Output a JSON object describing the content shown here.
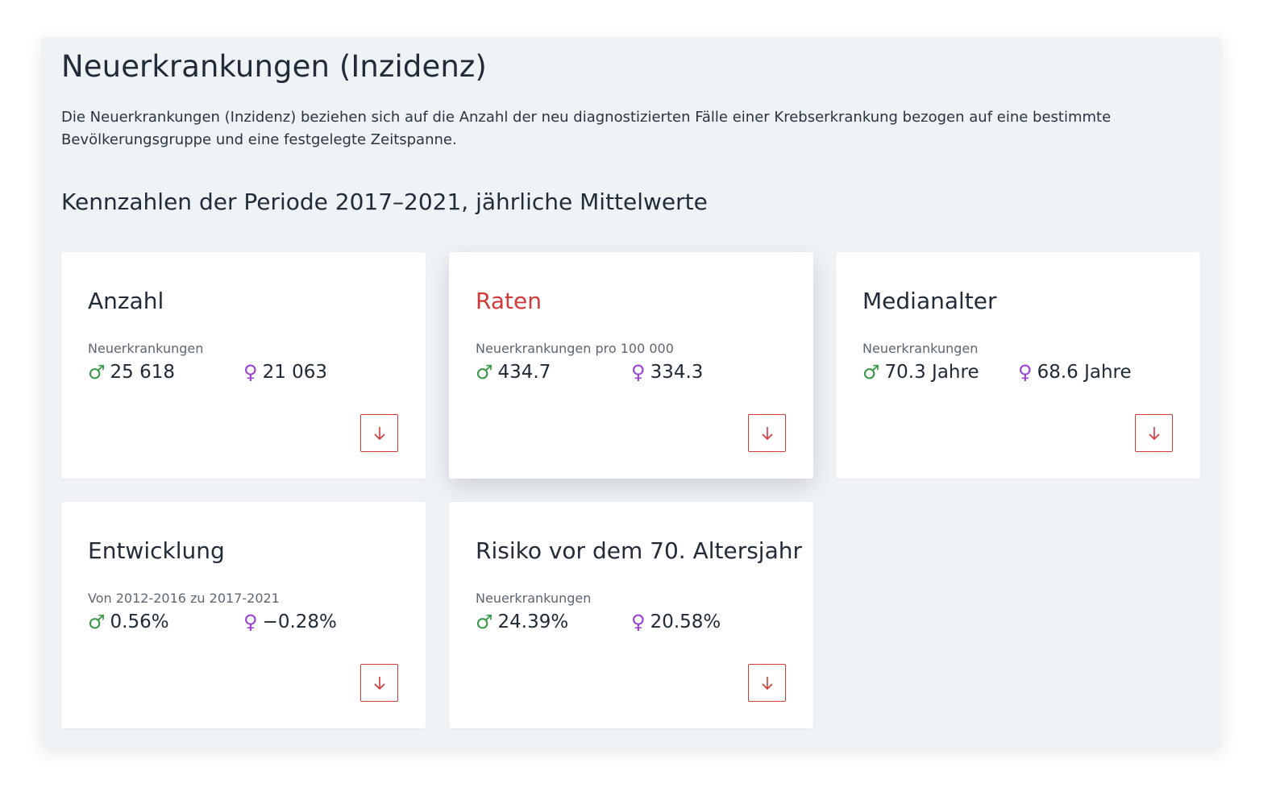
{
  "section": {
    "title": "Neuerkrankungen (Inzidenz)",
    "description": "Die Neuerkrankungen (Inzidenz) beziehen sich auf die Anzahl der neu diagnostizierten Fälle einer Krebserkrankung bezogen auf eine bestimmte Bevölkerungsgruppe und eine festgelegte Zeitspanne.",
    "period_title": "Kennzahlen der Periode 2017–2021, jährliche Mittelwerte"
  },
  "symbols": {
    "male": "♂",
    "female": "♀"
  },
  "colors": {
    "accent": "#d23a3a",
    "male": "#3a9a4a",
    "female": "#9b3fd6",
    "panel_bg": "#f0f3f6"
  },
  "cards": [
    {
      "title": "Anzahl",
      "subtitle": "Neuerkrankungen",
      "male": "25 618",
      "female": "21 063",
      "download_icon": "arrow-down-icon",
      "active": false
    },
    {
      "title": "Raten",
      "subtitle": "Neuerkrankungen pro 100 000",
      "male": "434.7",
      "female": "334.3",
      "download_icon": "arrow-down-icon",
      "active": true
    },
    {
      "title": "Medianalter",
      "subtitle": "Neuerkrankungen",
      "male": "70.3 Jahre",
      "female": "68.6 Jahre",
      "download_icon": "arrow-down-icon",
      "active": false
    },
    {
      "title": "Entwicklung",
      "subtitle": "Von 2012-2016 zu 2017-2021",
      "male": "0.56%",
      "female": "−0.28%",
      "download_icon": "arrow-down-icon",
      "active": false
    },
    {
      "title": "Risiko vor dem 70. Altersjahr",
      "subtitle": "Neuerkrankungen",
      "male": "24.39%",
      "female": "20.58%",
      "download_icon": "arrow-down-icon",
      "active": false
    }
  ]
}
